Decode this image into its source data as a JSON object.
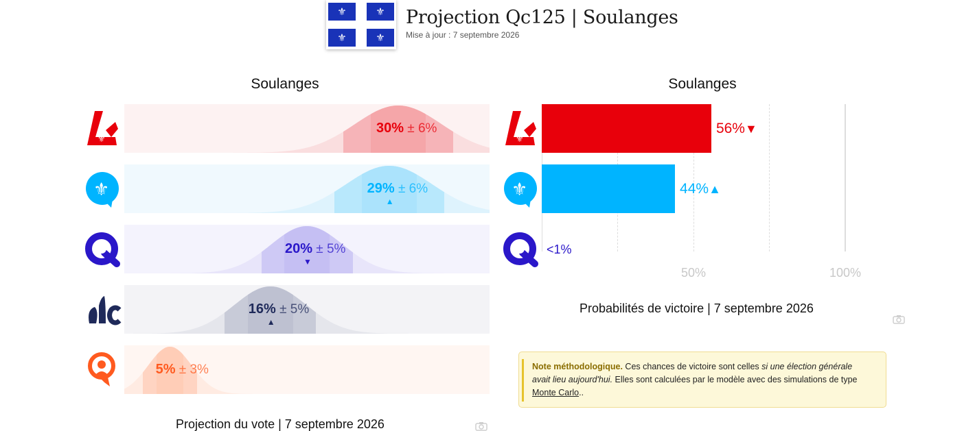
{
  "header": {
    "title": "Projection Qc125 | Soulanges",
    "updated": "Mise à jour : 7 septembre 2026",
    "flag_glyph": "⚜",
    "flag_color": "#1933b8"
  },
  "vote_panel": {
    "title": "Soulanges",
    "caption": "Projection du vote | 7 septembre 2026",
    "rows": [
      {
        "party_icon": "plq-logo-icon",
        "pct": "30%",
        "margin": "± 6%",
        "trend": "",
        "value": 30,
        "error": 6,
        "color": "#e8000b",
        "curve_color": "#f4a3a6",
        "bg_color": "#fdf2f2"
      },
      {
        "party_icon": "pq-logo-icon",
        "pct": "29%",
        "margin": "± 6%",
        "trend": "▲",
        "value": 29,
        "error": 6,
        "color": "#00b4ff",
        "curve_color": "#a8e2fb",
        "bg_color": "#f0f9fe"
      },
      {
        "party_icon": "caq-logo-icon",
        "pct": "20%",
        "margin": "± 5%",
        "trend": "▼",
        "value": 20,
        "error": 5,
        "color": "#2a17c9",
        "curve_color": "#c3bdf2",
        "bg_color": "#f4f3fd"
      },
      {
        "party_icon": "pcq-logo-icon",
        "pct": "16%",
        "margin": "± 5%",
        "trend": "▲",
        "value": 16,
        "error": 5,
        "color": "#1f2a5a",
        "curve_color": "#bcbfd0",
        "bg_color": "#f3f3f6"
      },
      {
        "party_icon": "qs-logo-icon",
        "pct": "5%",
        "margin": "± 3%",
        "trend": "",
        "value": 5,
        "error": 3,
        "color": "#ff5a1f",
        "curve_color": "#ffcbb5",
        "bg_color": "#fff6f2"
      }
    ]
  },
  "win_panel": {
    "title": "Soulanges",
    "caption": "Probabilités de victoire | 7 septembre 2026",
    "axis_labels": [
      "50%",
      "100%"
    ],
    "rows": [
      {
        "party_icon": "plq-logo-icon",
        "label": "56%",
        "trend": "▼",
        "value": 56,
        "color": "#e8000b"
      },
      {
        "party_icon": "pq-logo-icon",
        "label": "44%",
        "trend": "▲",
        "value": 44,
        "color": "#00b4ff"
      },
      {
        "party_icon": "caq-logo-icon",
        "label": "<1%",
        "trend": "",
        "value": 0.5,
        "color": "#2a17c9"
      }
    ]
  },
  "note": {
    "heading": "Note méthodologique.",
    "text1": " Ces chances de victoire sont celles ",
    "italic": "si une élection générale avait lieu aujourd'hui.",
    "text2": " Elles sont calculées par le modèle avec des simulations de type ",
    "link": "Monte Carlo",
    "text3": ".."
  },
  "icons": [
    "camera-icon"
  ]
}
